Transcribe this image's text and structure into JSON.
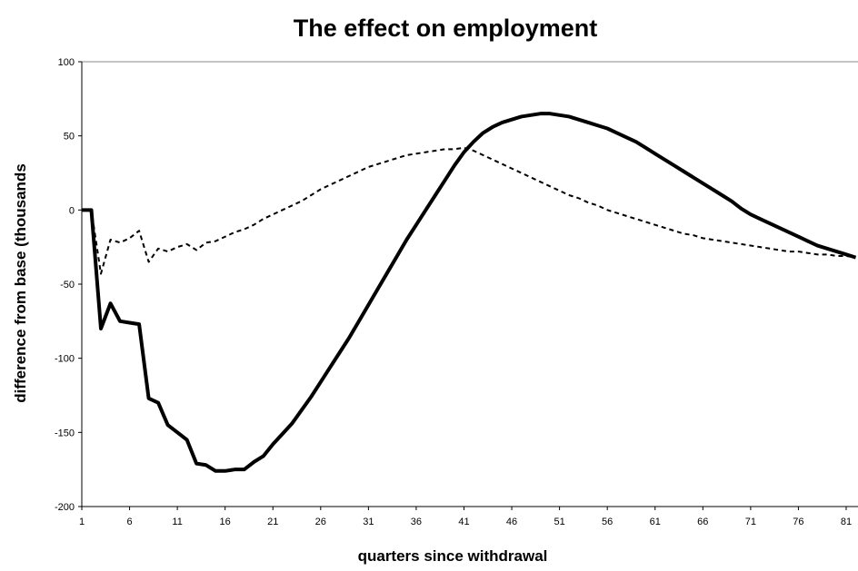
{
  "chart_data": {
    "type": "line",
    "title": "The effect on employment",
    "x_label": "quarters since withdrawal",
    "y_label": "difference from base (thousands",
    "x": [
      1,
      2,
      3,
      4,
      5,
      6,
      7,
      8,
      9,
      10,
      11,
      12,
      13,
      14,
      15,
      16,
      17,
      18,
      19,
      20,
      21,
      22,
      23,
      24,
      25,
      26,
      27,
      28,
      29,
      30,
      31,
      32,
      33,
      34,
      35,
      36,
      37,
      38,
      39,
      40,
      41,
      42,
      43,
      44,
      45,
      46,
      47,
      48,
      49,
      50,
      51,
      52,
      53,
      54,
      55,
      56,
      57,
      58,
      59,
      60,
      61,
      62,
      63,
      64,
      65,
      66,
      67,
      68,
      69,
      70,
      71,
      72,
      73,
      74,
      75,
      76,
      77,
      78,
      79,
      80,
      81,
      82
    ],
    "series": [
      {
        "color": "#000000",
        "style": "solid",
        "width": 4,
        "values": [
          0,
          0,
          -80,
          -63,
          -75,
          -76,
          -77,
          -127,
          -130,
          -145,
          -150,
          -155,
          -171,
          -172,
          -176,
          -176,
          -175,
          -175,
          -170,
          -166,
          -158,
          -151,
          -144,
          -135,
          -126,
          -116,
          -106,
          -96,
          -86,
          -75,
          -64,
          -53,
          -42,
          -31,
          -20,
          -10,
          0,
          10,
          20,
          30,
          39,
          46,
          52,
          56,
          59,
          61,
          63,
          64,
          65,
          65,
          64,
          63,
          61,
          59,
          57,
          55,
          52,
          49,
          46,
          42,
          38,
          34,
          30,
          26,
          22,
          18,
          14,
          10,
          6,
          1,
          -3,
          -6,
          -9,
          -12,
          -15,
          -18,
          -21,
          -24,
          -26,
          -28,
          -30,
          -32
        ]
      },
      {
        "color": "#000000",
        "style": "dashed",
        "width": 2,
        "values": [
          0,
          0,
          -43,
          -20,
          -22,
          -19,
          -14,
          -35,
          -26,
          -28,
          -25,
          -23,
          -27,
          -22,
          -21,
          -18,
          -15,
          -13,
          -10,
          -6,
          -3,
          0,
          3,
          6,
          10,
          14,
          17,
          20,
          23,
          26,
          29,
          31,
          33,
          35,
          37,
          38,
          39,
          40,
          41,
          41,
          42,
          40,
          37,
          34,
          31,
          28,
          25,
          22,
          19,
          16,
          13,
          10,
          8,
          5,
          3,
          0,
          -2,
          -4,
          -6,
          -8,
          -10,
          -12,
          -14,
          -16,
          -17,
          -19,
          -20,
          -21,
          -22,
          -23,
          -24,
          -25,
          -26,
          -27,
          -28,
          -28,
          -29,
          -30,
          -30,
          -31,
          -31,
          -32
        ]
      }
    ],
    "xlim": [
      1,
      82
    ],
    "xticks": [
      1,
      6,
      11,
      16,
      21,
      26,
      31,
      36,
      41,
      46,
      51,
      56,
      61,
      66,
      71,
      76,
      81
    ],
    "ylim": [
      -200,
      100
    ],
    "yticks": [
      -200,
      -150,
      -100,
      -50,
      0,
      50,
      100
    ],
    "grid": false
  }
}
